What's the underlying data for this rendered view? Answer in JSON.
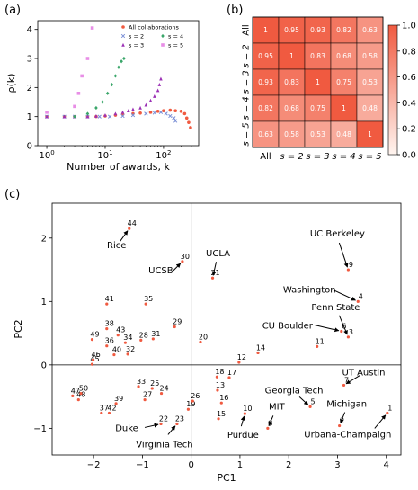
{
  "chart_data": [
    {
      "panel_label": "(a)",
      "type": "scatter",
      "xscale": "log",
      "xlim": [
        0.7,
        400
      ],
      "ylim": [
        0,
        4.3
      ],
      "xticks": [
        1,
        10,
        100
      ],
      "xtick_labels": [
        "10^0",
        "10^1",
        "10^2"
      ],
      "yticks": [
        0,
        1,
        2,
        3,
        4
      ],
      "xlabel": "Number of awards, k",
      "ylabel": "ρ(k)",
      "legend_position": "top-right",
      "series": [
        {
          "name": "All collaborations",
          "color": "#f05a40",
          "marker": "circle",
          "points": [
            [
              1,
              1.0
            ],
            [
              2,
              1.0
            ],
            [
              3,
              1.0
            ],
            [
              5,
              1.0
            ],
            [
              7,
              1.0
            ],
            [
              10,
              1.02
            ],
            [
              15,
              1.05
            ],
            [
              20,
              1.08
            ],
            [
              30,
              1.1
            ],
            [
              40,
              1.12
            ],
            [
              60,
              1.15
            ],
            [
              80,
              1.18
            ],
            [
              100,
              1.2
            ],
            [
              130,
              1.22
            ],
            [
              160,
              1.2
            ],
            [
              200,
              1.18
            ],
            [
              230,
              1.1
            ],
            [
              250,
              0.95
            ],
            [
              270,
              0.8
            ],
            [
              290,
              0.62
            ]
          ]
        },
        {
          "name": "s = 2",
          "color": "#7a8fd6",
          "marker": "x",
          "points": [
            [
              1,
              1.0
            ],
            [
              2,
              1.0
            ],
            [
              3,
              1.0
            ],
            [
              5,
              1.0
            ],
            [
              8,
              1.0
            ],
            [
              12,
              1.0
            ],
            [
              20,
              1.02
            ],
            [
              30,
              1.05
            ],
            [
              50,
              1.1
            ],
            [
              70,
              1.13
            ],
            [
              90,
              1.15
            ],
            [
              110,
              1.1
            ],
            [
              130,
              1.02
            ],
            [
              150,
              0.95
            ],
            [
              160,
              0.85
            ]
          ]
        },
        {
          "name": "s = 3",
          "color": "#9b30b5",
          "marker": "triangle",
          "points": [
            [
              1,
              1.0
            ],
            [
              2,
              1.0
            ],
            [
              3,
              1.0
            ],
            [
              5,
              1.0
            ],
            [
              7,
              1.02
            ],
            [
              10,
              1.05
            ],
            [
              15,
              1.1
            ],
            [
              20,
              1.15
            ],
            [
              25,
              1.2
            ],
            [
              30,
              1.25
            ],
            [
              40,
              1.3
            ],
            [
              50,
              1.4
            ],
            [
              60,
              1.55
            ],
            [
              70,
              1.7
            ],
            [
              80,
              1.9
            ],
            [
              85,
              2.1
            ],
            [
              90,
              2.3
            ]
          ]
        },
        {
          "name": "s = 4",
          "color": "#3aa66a",
          "marker": "diamond",
          "points": [
            [
              3,
              1.0
            ],
            [
              5,
              1.1
            ],
            [
              7,
              1.3
            ],
            [
              9,
              1.5
            ],
            [
              11,
              1.8
            ],
            [
              13,
              2.1
            ],
            [
              15,
              2.4
            ],
            [
              17,
              2.7
            ],
            [
              19,
              2.9
            ],
            [
              21,
              3.0
            ]
          ]
        },
        {
          "name": "s = 5",
          "color": "#e88ee6",
          "marker": "square",
          "points": [
            [
              1,
              1.15
            ],
            [
              3,
              1.35
            ],
            [
              3.5,
              1.8
            ],
            [
              4,
              2.4
            ],
            [
              5,
              3.0
            ],
            [
              6,
              4.05
            ]
          ]
        }
      ]
    },
    {
      "panel_label": "(b)",
      "type": "heatmap",
      "row_labels": [
        "All",
        "s = 2",
        "s = 3",
        "s = 4",
        "s = 5"
      ],
      "col_labels": [
        "All",
        "s = 2",
        "s = 3",
        "s = 4",
        "s = 5"
      ],
      "values": [
        [
          1,
          0.95,
          0.93,
          0.82,
          0.63
        ],
        [
          0.95,
          1,
          0.83,
          0.68,
          0.58
        ],
        [
          0.93,
          0.83,
          1,
          0.75,
          0.53
        ],
        [
          0.82,
          0.68,
          0.75,
          1,
          0.48
        ],
        [
          0.63,
          0.58,
          0.53,
          0.48,
          1
        ]
      ],
      "cell_labels": [
        [
          "1",
          "0.95",
          "0.93",
          "0.82",
          "0.63"
        ],
        [
          "0.95",
          "1",
          "0.83",
          "0.68",
          "0.58"
        ],
        [
          "0.93",
          "0.83",
          "1",
          "0.75",
          "0.53"
        ],
        [
          "0.82",
          "0.68",
          "0.75",
          "1",
          "0.48"
        ],
        [
          "0.63",
          "0.58",
          "0.53",
          "0.48",
          "1"
        ]
      ],
      "colorbar_ticks": [
        0.0,
        0.2,
        0.4,
        0.6,
        0.8,
        1.0
      ],
      "colorbar_tick_labels": [
        "0.0",
        "0.2",
        "0.4",
        "0.6",
        "0.8",
        "1.0"
      ],
      "colormap": "white-to-red"
    },
    {
      "panel_label": "(c)",
      "type": "scatter",
      "xlim": [
        -2.85,
        4.3
      ],
      "ylim": [
        -1.42,
        2.55
      ],
      "xticks": [
        -2,
        -1,
        0,
        1,
        2,
        3,
        4
      ],
      "xtick_labels": [
        "−2",
        "−1",
        "0",
        "1",
        "2",
        "3",
        "4"
      ],
      "yticks": [
        -1,
        0,
        1,
        2
      ],
      "ytick_labels": [
        "−1",
        "0",
        "1",
        "2"
      ],
      "xlabel": "PC1",
      "ylabel": "PC2",
      "point_color": "#f05a40",
      "points": [
        {
          "id": "1",
          "x": 4.02,
          "y": -0.76
        },
        {
          "id": "2",
          "x": 3.04,
          "y": -0.96
        },
        {
          "id": "3",
          "x": 3.22,
          "y": 0.44
        },
        {
          "id": "4",
          "x": 3.42,
          "y": 1.0
        },
        {
          "id": "5",
          "x": 2.44,
          "y": -0.66
        },
        {
          "id": "6",
          "x": 3.08,
          "y": 0.53
        },
        {
          "id": "7",
          "x": 3.13,
          "y": -0.32
        },
        {
          "id": "8",
          "x": 1.57,
          "y": -1.0
        },
        {
          "id": "9",
          "x": 3.22,
          "y": 1.5
        },
        {
          "id": "10",
          "x": 1.1,
          "y": -0.77
        },
        {
          "id": "11",
          "x": 2.58,
          "y": 0.29
        },
        {
          "id": "12",
          "x": 0.98,
          "y": 0.04
        },
        {
          "id": "13",
          "x": 0.54,
          "y": -0.4
        },
        {
          "id": "14",
          "x": 1.37,
          "y": 0.19
        },
        {
          "id": "15",
          "x": 0.56,
          "y": -0.85
        },
        {
          "id": "16",
          "x": 0.62,
          "y": -0.6
        },
        {
          "id": "17",
          "x": 0.78,
          "y": -0.2
        },
        {
          "id": "18",
          "x": 0.53,
          "y": -0.19
        },
        {
          "id": "19",
          "x": -0.06,
          "y": -0.7
        },
        {
          "id": "20",
          "x": 0.19,
          "y": 0.36
        },
        {
          "id": "21",
          "x": 0.44,
          "y": 1.37
        },
        {
          "id": "22",
          "x": -0.62,
          "y": -0.93
        },
        {
          "id": "23",
          "x": -0.29,
          "y": -0.93
        },
        {
          "id": "24",
          "x": -0.61,
          "y": -0.45
        },
        {
          "id": "25",
          "x": -0.8,
          "y": -0.37
        },
        {
          "id": "26",
          "x": 0.03,
          "y": -0.57
        },
        {
          "id": "27",
          "x": -0.95,
          "y": -0.55
        },
        {
          "id": "28",
          "x": -1.03,
          "y": 0.39
        },
        {
          "id": "29",
          "x": -0.34,
          "y": 0.6
        },
        {
          "id": "30",
          "x": -0.18,
          "y": 1.63
        },
        {
          "id": "31",
          "x": -0.78,
          "y": 0.41
        },
        {
          "id": "32",
          "x": -1.3,
          "y": 0.17
        },
        {
          "id": "33",
          "x": -1.08,
          "y": -0.34
        },
        {
          "id": "34",
          "x": -1.35,
          "y": 0.35
        },
        {
          "id": "35",
          "x": -0.93,
          "y": 0.96
        },
        {
          "id": "36",
          "x": -1.73,
          "y": 0.3
        },
        {
          "id": "37",
          "x": -1.84,
          "y": -0.76
        },
        {
          "id": "38",
          "x": -1.73,
          "y": 0.57
        },
        {
          "id": "39",
          "x": -1.54,
          "y": -0.61
        },
        {
          "id": "40",
          "x": -1.58,
          "y": 0.16
        },
        {
          "id": "41",
          "x": -1.73,
          "y": 0.96
        },
        {
          "id": "42",
          "x": -1.68,
          "y": -0.76
        },
        {
          "id": "43",
          "x": -1.5,
          "y": 0.47
        },
        {
          "id": "44",
          "x": -1.27,
          "y": 2.15
        },
        {
          "id": "45",
          "x": -2.03,
          "y": 0.01
        },
        {
          "id": "46",
          "x": -2.01,
          "y": 0.08
        },
        {
          "id": "47",
          "x": -2.43,
          "y": -0.49
        },
        {
          "id": "48",
          "x": -2.31,
          "y": -0.55
        },
        {
          "id": "49",
          "x": -2.03,
          "y": 0.4
        },
        {
          "id": "50",
          "x": -2.26,
          "y": -0.45
        }
      ],
      "annotations": [
        {
          "text": "UC Berkeley",
          "target": "9"
        },
        {
          "text": "Washington",
          "target": "4"
        },
        {
          "text": "Penn State",
          "target": "3"
        },
        {
          "text": "CU Boulder",
          "target": "6"
        },
        {
          "text": "UT Austin",
          "target": "7"
        },
        {
          "text": "Georgia Tech",
          "target": "5"
        },
        {
          "text": "Michigan",
          "target": "2"
        },
        {
          "text": "Urbana-Champaign",
          "target": "1"
        },
        {
          "text": "MIT",
          "target": "8"
        },
        {
          "text": "Purdue",
          "target": "10"
        },
        {
          "text": "UCLA",
          "target": "21"
        },
        {
          "text": "UCSB",
          "target": "30"
        },
        {
          "text": "Rice",
          "target": "44"
        },
        {
          "text": "Duke",
          "target": "22"
        },
        {
          "text": "Virginia Tech",
          "target": "23"
        }
      ]
    }
  ]
}
